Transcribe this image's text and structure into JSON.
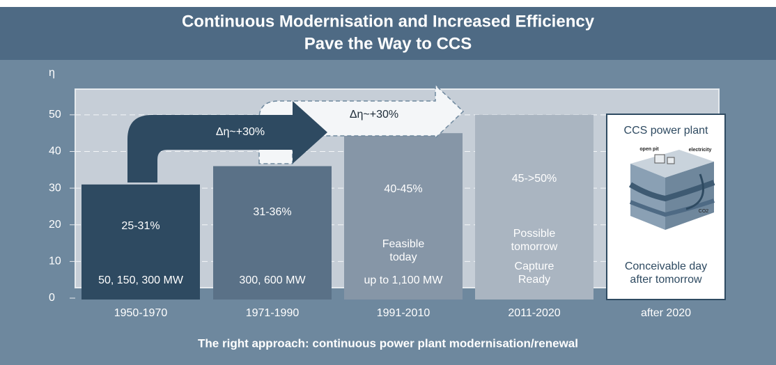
{
  "chart_data": {
    "type": "bar",
    "title": [
      "Continuous Modernisation and Increased Efficiency",
      "Pave the Way to CCS"
    ],
    "y_label": "η",
    "categories": [
      "1950-1970",
      "1971-1990",
      "1991-2010",
      "2011-2020",
      "after 2020"
    ],
    "values": [
      31,
      36,
      45,
      50,
      null
    ],
    "colors": [
      "#2e4a61",
      "#5a7187",
      "#8696a7",
      "#aab5c1",
      "#ffffff"
    ],
    "range_labels": [
      "25-31%",
      "31-36%",
      "40-45%",
      "45->50%",
      null
    ],
    "capacity_labels": [
      "50, 150, 300 MW",
      "300, 600 MW",
      "up to 1,100 MW",
      null,
      null
    ],
    "notes": [
      null,
      null,
      "Feasible today",
      "Possible tomorrow",
      "Conceivable day after tomorrow"
    ],
    "notes_2": [
      null,
      null,
      null,
      "Capture Ready",
      null
    ],
    "panel": {
      "title": "CCS power plant",
      "labels": [
        "open pit",
        "electricity",
        "CO2"
      ]
    },
    "annotations": [
      "Δη~+30%",
      "Δη~+30%"
    ],
    "footer": "The right approach: continuous power plant modernisation/renewal",
    "ylim": [
      0,
      57
    ],
    "yticks": [
      0,
      10,
      20,
      30,
      40,
      50
    ],
    "grid": true
  }
}
